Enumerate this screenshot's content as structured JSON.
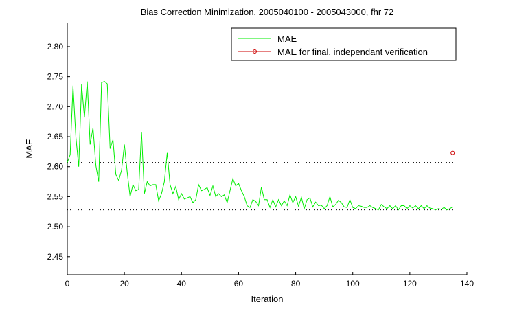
{
  "chart_data": {
    "type": "line",
    "title": "Bias Correction Minimization, 2005040100 - 2005043000, fhr 72",
    "xlabel": "Iteration",
    "ylabel": "MAE",
    "xlim": [
      0,
      140
    ],
    "ylim": [
      2.42,
      2.84
    ],
    "x_ticks": [
      0,
      20,
      40,
      60,
      80,
      100,
      120,
      140
    ],
    "x_tick_labels": [
      "0",
      "20",
      "40",
      "60",
      "80",
      "100",
      "120",
      "140"
    ],
    "y_ticks": [
      2.45,
      2.5,
      2.55,
      2.6,
      2.65,
      2.7,
      2.75,
      2.8
    ],
    "y_tick_labels": [
      "2.45",
      "2.50",
      "2.55",
      "2.60",
      "2.65",
      "2.70",
      "2.75",
      "2.80"
    ],
    "grid": false,
    "legend_position": "top-right",
    "colors": {
      "mae_line": "#00ee00",
      "final_marker": "#cc0000",
      "reference_lines": "#000000"
    },
    "series": [
      {
        "name": "MAE",
        "x": [
          0,
          1,
          2,
          3,
          4,
          5,
          6,
          7,
          8,
          9,
          10,
          11,
          12,
          13,
          14,
          15,
          16,
          17,
          18,
          19,
          20,
          21,
          22,
          23,
          24,
          25,
          26,
          27,
          28,
          29,
          30,
          31,
          32,
          33,
          34,
          35,
          36,
          37,
          38,
          39,
          40,
          41,
          42,
          43,
          44,
          45,
          46,
          47,
          48,
          49,
          50,
          51,
          52,
          53,
          54,
          55,
          56,
          57,
          58,
          59,
          60,
          61,
          62,
          63,
          64,
          65,
          66,
          67,
          68,
          69,
          70,
          71,
          72,
          73,
          74,
          75,
          76,
          77,
          78,
          79,
          80,
          81,
          82,
          83,
          84,
          85,
          86,
          87,
          88,
          89,
          90,
          91,
          92,
          93,
          94,
          95,
          96,
          97,
          98,
          99,
          100,
          101,
          102,
          103,
          104,
          105,
          106,
          107,
          108,
          109,
          110,
          111,
          112,
          113,
          114,
          115,
          116,
          117,
          118,
          119,
          120,
          121,
          122,
          123,
          124,
          125,
          126,
          127,
          128,
          129,
          130,
          131,
          132,
          133,
          134,
          135
        ],
        "y": [
          2.607,
          2.62,
          2.735,
          2.65,
          2.6,
          2.737,
          2.682,
          2.742,
          2.637,
          2.665,
          2.602,
          2.575,
          2.74,
          2.742,
          2.738,
          2.63,
          2.645,
          2.587,
          2.577,
          2.594,
          2.637,
          2.59,
          2.55,
          2.57,
          2.56,
          2.562,
          2.658,
          2.555,
          2.575,
          2.568,
          2.57,
          2.57,
          2.543,
          2.555,
          2.575,
          2.623,
          2.57,
          2.555,
          2.567,
          2.545,
          2.555,
          2.546,
          2.548,
          2.55,
          2.54,
          2.545,
          2.57,
          2.56,
          2.562,
          2.565,
          2.552,
          2.568,
          2.55,
          2.555,
          2.55,
          2.553,
          2.54,
          2.56,
          2.58,
          2.568,
          2.572,
          2.56,
          2.55,
          2.535,
          2.532,
          2.545,
          2.542,
          2.535,
          2.566,
          2.545,
          2.545,
          2.532,
          2.545,
          2.533,
          2.545,
          2.535,
          2.543,
          2.535,
          2.553,
          2.54,
          2.55,
          2.534,
          2.549,
          2.53,
          2.545,
          2.548,
          2.533,
          2.541,
          2.535,
          2.536,
          2.53,
          2.535,
          2.55,
          2.533,
          2.537,
          2.544,
          2.54,
          2.533,
          2.532,
          2.545,
          2.532,
          2.53,
          2.535,
          2.534,
          2.532,
          2.532,
          2.535,
          2.532,
          2.53,
          2.528,
          2.537,
          2.533,
          2.53,
          2.535,
          2.53,
          2.535,
          2.528,
          2.535,
          2.535,
          2.53,
          2.535,
          2.531,
          2.535,
          2.53,
          2.535,
          2.53,
          2.535,
          2.531,
          2.53,
          2.528,
          2.53,
          2.529,
          2.532,
          2.528,
          2.53,
          2.533
        ]
      },
      {
        "name": "MAE for final, independant verification",
        "x": [
          135
        ],
        "y": [
          2.623
        ]
      }
    ],
    "reference_lines": [
      2.607,
      2.528
    ]
  }
}
